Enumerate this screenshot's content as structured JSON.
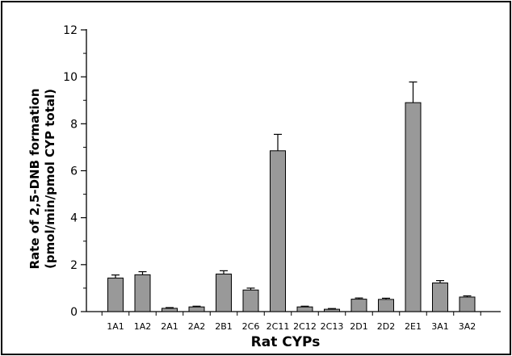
{
  "chart_data": {
    "type": "bar",
    "title": "",
    "xlabel": "Rat CYPs",
    "ylabel_line1": "Rate of 2,5-DNB formation",
    "ylabel_line2": "(pmol/min/pmol CYP total)",
    "categories": [
      "1A1",
      "1A2",
      "2A1",
      "2A2",
      "2B1",
      "2C6",
      "2C11",
      "2C12",
      "2C13",
      "2D1",
      "2D2",
      "2E1",
      "3A1",
      "3A2"
    ],
    "values": [
      1.43,
      1.57,
      0.14,
      0.2,
      1.6,
      0.92,
      6.85,
      0.2,
      0.1,
      0.53,
      0.52,
      8.9,
      1.22,
      0.62
    ],
    "errors": [
      0.13,
      0.13,
      0.03,
      0.03,
      0.14,
      0.08,
      0.7,
      0.03,
      0.03,
      0.05,
      0.05,
      0.88,
      0.1,
      0.05
    ],
    "ylim": [
      0,
      12
    ],
    "yticks": [
      0,
      2,
      4,
      6,
      8,
      10,
      12
    ],
    "y_minor_step": 1,
    "grid": false,
    "legend": "none",
    "bar_color": "#999999",
    "bar_stroke": "#000000"
  }
}
